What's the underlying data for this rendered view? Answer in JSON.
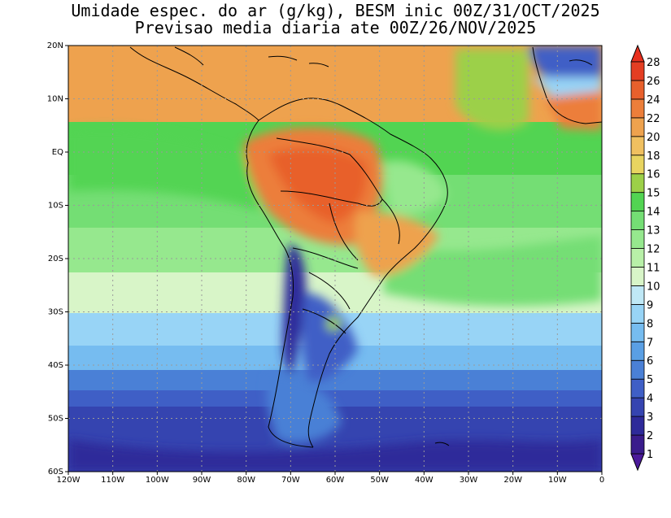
{
  "title": {
    "line1": "Umidade espec. do ar (g/kg), BESM inic 00Z/31/OCT/2025",
    "line2": "Previsao media diaria ate 00Z/26/NOV/2025"
  },
  "axes": {
    "lat_labels": [
      "20N",
      "10N",
      "EQ",
      "10S",
      "20S",
      "30S",
      "40S",
      "50S",
      "60S"
    ],
    "lon_labels": [
      "120W",
      "110W",
      "100W",
      "90W",
      "80W",
      "70W",
      "60W",
      "50W",
      "40W",
      "30W",
      "20W",
      "10W",
      "0"
    ]
  },
  "colorbar": {
    "levels": [
      "1",
      "2",
      "3",
      "4",
      "5",
      "6",
      "7",
      "8",
      "9",
      "10",
      "11",
      "12",
      "13",
      "14",
      "15",
      "16",
      "18",
      "20",
      "22",
      "24",
      "26",
      "28"
    ],
    "colors": [
      "#3a1c8c",
      "#2e2a9a",
      "#3544b0",
      "#3f5fc6",
      "#4a80d6",
      "#5a9fe4",
      "#76bcf0",
      "#98d4f6",
      "#bfe8f6",
      "#d8f5c8",
      "#b8f0a8",
      "#96e88e",
      "#74de74",
      "#52d452",
      "#9cd048",
      "#e8d460",
      "#f0c060",
      "#eea24e",
      "#ec7e3a",
      "#e8602c",
      "#e43e22"
    ],
    "under_color": "#4b1a9a",
    "over_color": "#e8301e"
  }
}
